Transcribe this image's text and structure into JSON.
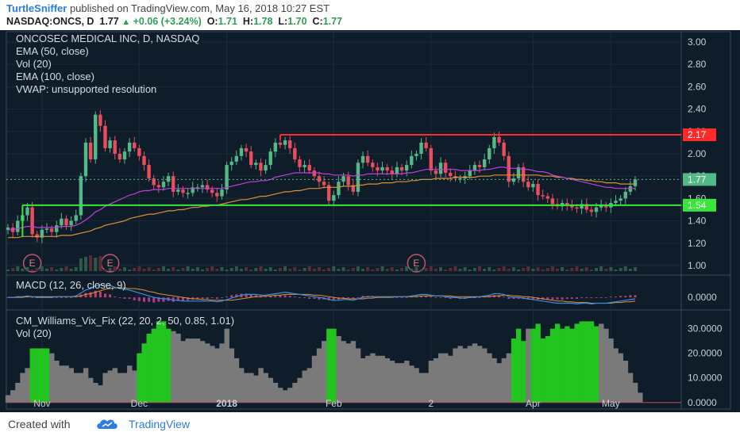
{
  "header": {
    "author": "TurtleSniffer",
    "published_text": "published on TradingView.com, May 16, 2018 10:27 EST",
    "symbol": "NASDAQ:ONCS, D",
    "last": "1.77",
    "change": "+0.06 (+3.24%)",
    "o_label": "O:",
    "o_val": "1.71",
    "h_label": "H:",
    "h_val": "1.78",
    "l_label": "L:",
    "l_val": "1.70",
    "c_label": "C:",
    "c_val": "1.77"
  },
  "legend_main": {
    "title": "ONCOSEC MEDICAL INC, D, NASDAQ",
    "ema50": "EMA (50, close)",
    "vol": "Vol (20)",
    "ema100": "EMA (100, close)",
    "vwap": "VWAP: unsupported resolution"
  },
  "legend_macd": "MACD (12, 26, close, 9)",
  "legend_vix": {
    "title": "CM_Williams_Vix_Fix (22, 20, 2, 50, 0.85, 1.01)",
    "vol": "Vol (20)"
  },
  "footer": {
    "created_with": "Created with",
    "brand": "TradingView"
  },
  "colors": {
    "background": "#0f1d2b",
    "up_candle": "#53b987",
    "down_candle": "#eb4d5c",
    "ema50": "#c040d8",
    "ema100": "#e09030",
    "resistance": "#ff2a2a",
    "support": "#39e639",
    "vix_high": "#22c41f",
    "vix_normal": "#7a7a7a"
  },
  "chart_data": [
    {
      "type": "candlestick",
      "title": "ONCOSEC MEDICAL INC, D, NASDAQ",
      "ylim": [
        0.95,
        3.05
      ],
      "y_ticks": [
        "3.00",
        "2.80",
        "2.60",
        "2.40",
        "2.20",
        "2.00",
        "1.80",
        "1.60",
        "1.40",
        "1.20",
        "1.00"
      ],
      "x_tick_labels": [
        "Nov",
        "Dec",
        "2018",
        "Feb",
        "2",
        "Apr",
        "May"
      ],
      "x_tick_bars": [
        7,
        27,
        45,
        67,
        87,
        108,
        124
      ],
      "price_labels": [
        {
          "value": 2.17,
          "text": "2.17",
          "color": "#ff2a2a"
        },
        {
          "value": 1.77,
          "text": "1.77",
          "color": "#53b987"
        },
        {
          "value": 1.54,
          "text": "1.54",
          "color": "#39e639"
        }
      ],
      "horizontal_lines": [
        {
          "name": "resistance",
          "value": 2.17,
          "from_bar": 56
        },
        {
          "name": "support",
          "value": 1.54,
          "from_bar": 3
        }
      ],
      "earnings_markers": {
        "text": "E",
        "bars": [
          5,
          21,
          84
        ]
      },
      "closes": [
        1.34,
        1.3,
        1.4,
        1.45,
        1.52,
        1.28,
        1.25,
        1.32,
        1.33,
        1.3,
        1.36,
        1.42,
        1.36,
        1.4,
        1.45,
        1.8,
        2.1,
        1.95,
        2.35,
        2.25,
        2.05,
        2.12,
        2.0,
        1.95,
        2.02,
        2.1,
        2.05,
        1.98,
        1.9,
        1.78,
        1.72,
        1.7,
        1.75,
        1.8,
        1.66,
        1.68,
        1.65,
        1.65,
        1.7,
        1.7,
        1.72,
        1.68,
        1.65,
        1.62,
        1.68,
        1.9,
        1.93,
        1.98,
        2.05,
        2.02,
        1.9,
        1.92,
        1.85,
        1.9,
        2.02,
        2.1,
        2.08,
        2.12,
        2.05,
        1.95,
        1.88,
        1.9,
        1.85,
        1.8,
        1.75,
        1.72,
        1.58,
        1.63,
        1.75,
        1.8,
        1.72,
        1.66,
        1.92,
        1.98,
        1.92,
        1.88,
        1.85,
        1.88,
        1.85,
        1.82,
        1.88,
        1.85,
        1.9,
        1.98,
        2.0,
        2.1,
        2.05,
        1.85,
        1.82,
        1.92,
        1.83,
        1.8,
        1.78,
        1.78,
        1.8,
        1.85,
        1.9,
        1.88,
        1.95,
        2.05,
        2.15,
        2.1,
        1.98,
        1.75,
        1.78,
        1.88,
        1.75,
        1.7,
        1.73,
        1.63,
        1.62,
        1.6,
        1.55,
        1.53,
        1.56,
        1.54,
        1.52,
        1.51,
        1.55,
        1.5,
        1.48,
        1.52,
        1.54,
        1.52,
        1.56,
        1.58,
        1.6,
        1.66,
        1.71,
        1.77
      ],
      "ema50": [
        1.32,
        1.32,
        1.33,
        1.34,
        1.35,
        1.35,
        1.34,
        1.34,
        1.34,
        1.34,
        1.34,
        1.35,
        1.35,
        1.35,
        1.36,
        1.38,
        1.41,
        1.44,
        1.48,
        1.5,
        1.53,
        1.55,
        1.57,
        1.59,
        1.61,
        1.63,
        1.64,
        1.66,
        1.67,
        1.67,
        1.68,
        1.68,
        1.68,
        1.69,
        1.69,
        1.69,
        1.69,
        1.69,
        1.69,
        1.69,
        1.69,
        1.69,
        1.69,
        1.69,
        1.69,
        1.7,
        1.71,
        1.72,
        1.73,
        1.74,
        1.75,
        1.75,
        1.76,
        1.76,
        1.77,
        1.79,
        1.8,
        1.81,
        1.82,
        1.83,
        1.83,
        1.83,
        1.83,
        1.83,
        1.83,
        1.82,
        1.82,
        1.81,
        1.81,
        1.81,
        1.81,
        1.8,
        1.81,
        1.81,
        1.82,
        1.82,
        1.82,
        1.82,
        1.82,
        1.82,
        1.82,
        1.82,
        1.83,
        1.83,
        1.84,
        1.85,
        1.86,
        1.86,
        1.86,
        1.86,
        1.86,
        1.86,
        1.86,
        1.85,
        1.85,
        1.85,
        1.85,
        1.85,
        1.86,
        1.86,
        1.87,
        1.88,
        1.88,
        1.87,
        1.87,
        1.87,
        1.86,
        1.86,
        1.85,
        1.84,
        1.84,
        1.83,
        1.81,
        1.8,
        1.79,
        1.78,
        1.77,
        1.76,
        1.75,
        1.74,
        1.73,
        1.72,
        1.71,
        1.7,
        1.7,
        1.69,
        1.69,
        1.69,
        1.69,
        1.69
      ],
      "ema100": [
        1.25,
        1.25,
        1.25,
        1.26,
        1.26,
        1.26,
        1.26,
        1.26,
        1.26,
        1.26,
        1.26,
        1.27,
        1.27,
        1.27,
        1.28,
        1.29,
        1.3,
        1.31,
        1.33,
        1.34,
        1.36,
        1.37,
        1.38,
        1.39,
        1.4,
        1.42,
        1.43,
        1.44,
        1.45,
        1.46,
        1.46,
        1.47,
        1.48,
        1.49,
        1.49,
        1.5,
        1.5,
        1.51,
        1.52,
        1.52,
        1.53,
        1.53,
        1.54,
        1.54,
        1.55,
        1.56,
        1.57,
        1.58,
        1.59,
        1.59,
        1.6,
        1.61,
        1.62,
        1.62,
        1.63,
        1.64,
        1.65,
        1.66,
        1.66,
        1.67,
        1.67,
        1.68,
        1.69,
        1.69,
        1.69,
        1.7,
        1.7,
        1.7,
        1.7,
        1.71,
        1.71,
        1.71,
        1.72,
        1.72,
        1.73,
        1.73,
        1.73,
        1.74,
        1.74,
        1.74,
        1.75,
        1.75,
        1.75,
        1.76,
        1.76,
        1.77,
        1.77,
        1.77,
        1.78,
        1.78,
        1.78,
        1.78,
        1.79,
        1.79,
        1.79,
        1.79,
        1.79,
        1.8,
        1.8,
        1.8,
        1.81,
        1.81,
        1.81,
        1.81,
        1.81,
        1.81,
        1.81,
        1.81,
        1.81,
        1.81,
        1.8,
        1.8,
        1.8,
        1.79,
        1.79,
        1.78,
        1.78,
        1.77,
        1.77,
        1.76,
        1.76,
        1.75,
        1.75,
        1.74,
        1.74,
        1.74,
        1.73,
        1.73,
        1.73,
        1.73
      ]
    },
    {
      "type": "line",
      "title": "MACD (12, 26, close, 9)",
      "ylim": [
        -0.15,
        0.25
      ],
      "y_ticks": [
        "0.0000"
      ],
      "macd": [
        0.0,
        0.0,
        0.01,
        0.01,
        0.02,
        0.01,
        0.0,
        0.0,
        0.0,
        0.0,
        0.01,
        0.01,
        0.01,
        0.01,
        0.02,
        0.06,
        0.1,
        0.12,
        0.16,
        0.17,
        0.16,
        0.16,
        0.14,
        0.12,
        0.11,
        0.1,
        0.08,
        0.06,
        0.04,
        0.02,
        0.0,
        -0.01,
        -0.02,
        -0.02,
        -0.04,
        -0.04,
        -0.05,
        -0.05,
        -0.05,
        -0.05,
        -0.05,
        -0.05,
        -0.05,
        -0.06,
        -0.05,
        -0.03,
        -0.01,
        0.01,
        0.03,
        0.04,
        0.04,
        0.04,
        0.03,
        0.03,
        0.04,
        0.05,
        0.06,
        0.07,
        0.06,
        0.05,
        0.04,
        0.03,
        0.02,
        0.01,
        0.0,
        -0.01,
        -0.03,
        -0.04,
        -0.04,
        -0.03,
        -0.03,
        -0.04,
        -0.02,
        0.0,
        0.01,
        0.01,
        0.01,
        0.01,
        0.01,
        0.01,
        0.01,
        0.01,
        0.01,
        0.02,
        0.03,
        0.04,
        0.04,
        0.03,
        0.02,
        0.02,
        0.01,
        0.0,
        0.0,
        -0.01,
        -0.01,
        0.0,
        0.0,
        0.01,
        0.02,
        0.03,
        0.05,
        0.05,
        0.04,
        0.01,
        0.0,
        0.0,
        -0.01,
        -0.02,
        -0.03,
        -0.04,
        -0.05,
        -0.06,
        -0.07,
        -0.08,
        -0.08,
        -0.08,
        -0.08,
        -0.09,
        -0.08,
        -0.08,
        -0.09,
        -0.08,
        -0.08,
        -0.08,
        -0.07,
        -0.06,
        -0.05,
        -0.04,
        -0.03,
        -0.02
      ],
      "signal": [
        0.0,
        0.0,
        0.0,
        0.0,
        0.01,
        0.01,
        0.01,
        0.01,
        0.01,
        0.01,
        0.01,
        0.01,
        0.01,
        0.01,
        0.01,
        0.02,
        0.04,
        0.05,
        0.07,
        0.09,
        0.11,
        0.12,
        0.13,
        0.13,
        0.13,
        0.12,
        0.12,
        0.11,
        0.1,
        0.08,
        0.07,
        0.05,
        0.04,
        0.03,
        0.02,
        0.01,
        0.0,
        -0.01,
        -0.02,
        -0.02,
        -0.03,
        -0.03,
        -0.04,
        -0.04,
        -0.04,
        -0.04,
        -0.04,
        -0.03,
        -0.02,
        -0.01,
        0.0,
        0.01,
        0.01,
        0.02,
        0.02,
        0.03,
        0.03,
        0.04,
        0.04,
        0.04,
        0.04,
        0.04,
        0.04,
        0.03,
        0.03,
        0.02,
        0.01,
        0.0,
        -0.01,
        -0.01,
        -0.02,
        -0.02,
        -0.02,
        -0.02,
        -0.01,
        -0.01,
        0.0,
        0.0,
        0.0,
        0.0,
        0.01,
        0.01,
        0.01,
        0.01,
        0.01,
        0.02,
        0.02,
        0.02,
        0.02,
        0.02,
        0.02,
        0.02,
        0.01,
        0.01,
        0.01,
        0.01,
        0.01,
        0.01,
        0.01,
        0.01,
        0.02,
        0.02,
        0.03,
        0.03,
        0.02,
        0.02,
        0.01,
        0.01,
        0.0,
        -0.01,
        -0.02,
        -0.03,
        -0.04,
        -0.05,
        -0.05,
        -0.06,
        -0.06,
        -0.07,
        -0.07,
        -0.07,
        -0.08,
        -0.08,
        -0.08,
        -0.08,
        -0.08,
        -0.07,
        -0.07,
        -0.06,
        -0.06,
        -0.05
      ]
    },
    {
      "type": "bar",
      "title": "CM_Williams_Vix_Fix (22, 20, 2, 50, 0.85, 1.01)",
      "ylim": [
        -2,
        36
      ],
      "y_ticks": [
        "30.0000",
        "20.0000",
        "10.0000",
        "0.0000"
      ],
      "values": [
        3,
        5,
        8,
        12,
        14,
        22,
        22,
        22,
        22,
        20,
        17,
        15,
        15,
        14,
        12,
        12,
        14,
        10,
        8,
        7,
        12,
        13,
        14,
        12,
        12,
        15,
        13,
        20,
        24,
        28,
        30,
        33,
        33,
        30,
        29,
        28,
        25,
        26,
        26,
        26,
        25,
        24,
        23,
        22,
        24,
        30,
        22,
        18,
        14,
        12,
        12,
        11,
        14,
        12,
        10,
        8,
        6,
        5,
        6,
        8,
        10,
        13,
        14,
        19,
        22,
        25,
        30,
        30,
        27,
        25,
        24,
        25,
        22,
        18,
        19,
        20,
        19,
        19,
        18,
        17,
        16,
        16,
        17,
        15,
        14,
        12,
        12,
        17,
        18,
        20,
        20,
        19,
        22,
        23,
        22,
        23,
        24,
        23,
        22,
        20,
        18,
        16,
        18,
        20,
        26,
        30,
        25,
        30,
        30,
        32,
        26,
        27,
        30,
        32,
        30,
        31,
        30,
        32,
        33,
        33,
        33,
        31,
        32,
        30,
        26,
        22,
        20,
        17,
        12,
        8,
        4
      ],
      "signal_bars": [
        5,
        6,
        7,
        8,
        27,
        28,
        29,
        30,
        31,
        32,
        33,
        66,
        67,
        104,
        105,
        106,
        108,
        109,
        110,
        111,
        112,
        113,
        114,
        115,
        116,
        117,
        118,
        119,
        120,
        121
      ]
    }
  ]
}
